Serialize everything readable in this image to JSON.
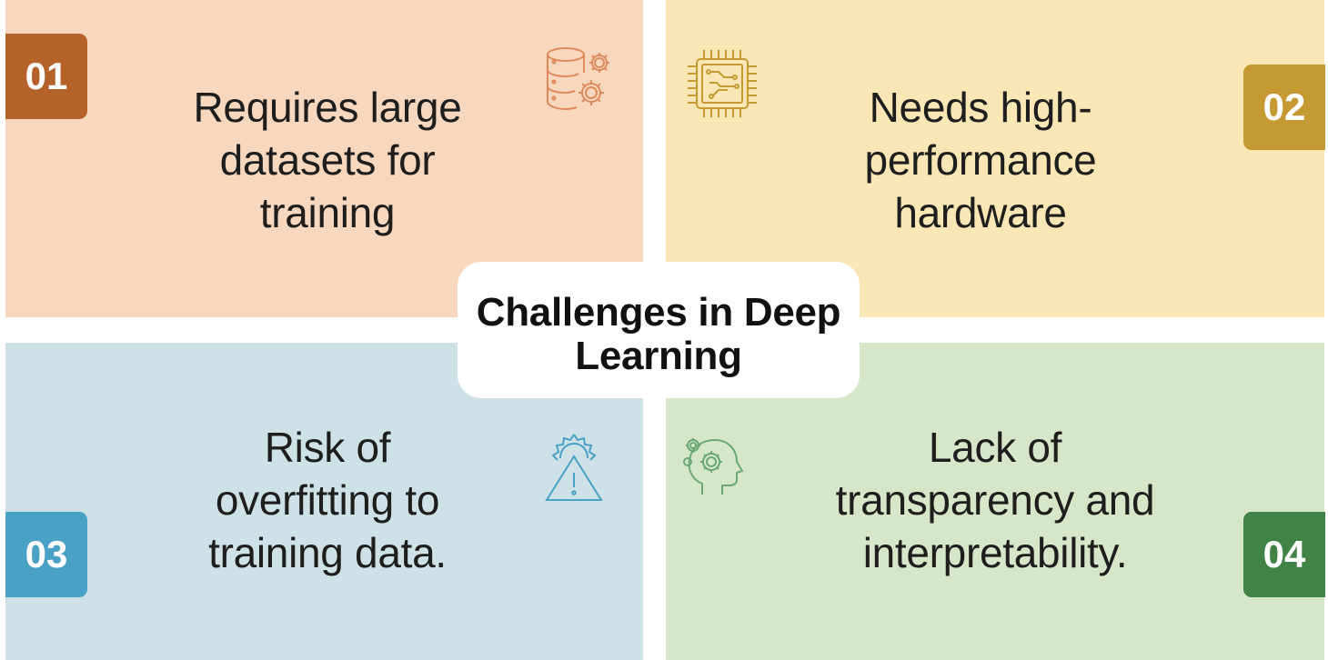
{
  "title": "Challenges in Deep Learning",
  "colors": {
    "q1_bg": "#f7d8bf",
    "q2_bg": "#fbe7b6",
    "q3_bg": "#cde1e7",
    "q4_bg": "#d6e7c9",
    "badge1": "#b5622a",
    "badge2": "#c69a33",
    "badge3": "#4aa1c6",
    "badge4": "#3f8346",
    "icon1": "#e08a5c",
    "icon2": "#c69a33",
    "icon3": "#4aa1c6",
    "icon4": "#6aa874"
  },
  "items": [
    {
      "number": "01",
      "text_lines": [
        "Requires large",
        "datasets for",
        "training"
      ],
      "icon": "database-gears-icon"
    },
    {
      "number": "02",
      "text_lines": [
        "Needs high-",
        "performance",
        "hardware"
      ],
      "icon": "microchip-icon"
    },
    {
      "number": "03",
      "text_lines": [
        "Risk of",
        "overfitting to",
        "training data."
      ],
      "icon": "warning-gear-icon"
    },
    {
      "number": "04",
      "text_lines": [
        "Lack of",
        "transparency and",
        "interpretability."
      ],
      "icon": "head-gears-icon"
    }
  ]
}
